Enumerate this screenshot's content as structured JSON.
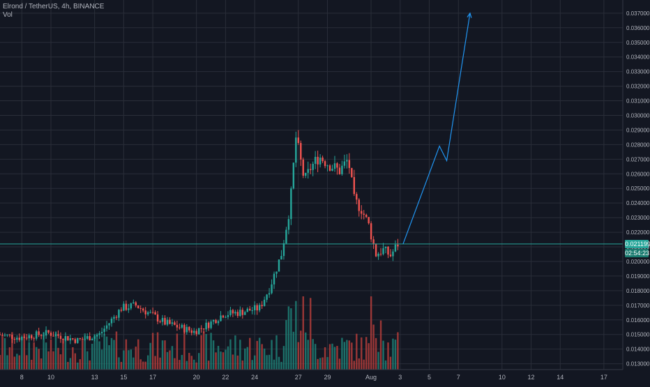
{
  "legend": {
    "title": "Elrond / TetherUS, 4h, BINANCE",
    "indicator": "Vol"
  },
  "colors": {
    "background": "#131722",
    "grid": "#2a2e39",
    "up": "#26a69a",
    "down": "#ef5350",
    "vol_up": "#1e7f76",
    "vol_down": "#b23c3a",
    "projection": "#2196f3",
    "text": "#b2b5be"
  },
  "last_price": {
    "value": 0.021199,
    "label": "0.021199",
    "countdown": "02:54:23"
  },
  "chart_data": {
    "type": "candlestick",
    "title": "Elrond / TetherUS, 4h, BINANCE",
    "x_ticks": [
      {
        "label": "8",
        "day": 8
      },
      {
        "label": "10",
        "day": 10
      },
      {
        "label": "13",
        "day": 13
      },
      {
        "label": "15",
        "day": 15
      },
      {
        "label": "17",
        "day": 17
      },
      {
        "label": "20",
        "day": 20
      },
      {
        "label": "22",
        "day": 22
      },
      {
        "label": "24",
        "day": 24
      },
      {
        "label": "27",
        "day": 27
      },
      {
        "label": "29",
        "day": 29
      },
      {
        "label": "Aug",
        "day": 32
      },
      {
        "label": "3",
        "day": 34
      },
      {
        "label": "5",
        "day": 36
      },
      {
        "label": "7",
        "day": 38
      },
      {
        "label": "10",
        "day": 41
      },
      {
        "label": "12",
        "day": 43
      },
      {
        "label": "14",
        "day": 45
      },
      {
        "label": "17",
        "day": 48
      }
    ],
    "y_ticks": [
      0.013,
      0.014,
      0.015,
      0.016,
      0.017,
      0.018,
      0.019,
      0.02,
      0.021,
      0.022,
      0.023,
      0.024,
      0.025,
      0.026,
      0.027,
      0.028,
      0.029,
      0.03,
      0.031,
      0.032,
      0.033,
      0.034,
      0.035,
      0.036,
      0.037
    ],
    "y_tick_labels": [
      "0.013000",
      "0.014000",
      "0.015000",
      "0.016000",
      "0.017000",
      "0.018000",
      "0.019000",
      "0.020000",
      "0.021000",
      "0.022000",
      "0.023000",
      "0.024000",
      "0.025000",
      "0.026000",
      "0.027000",
      "0.028000",
      "0.029000",
      "0.030000",
      "0.031000",
      "0.032000",
      "0.033000",
      "0.034000",
      "0.035000",
      "0.036000",
      "0.037000"
    ],
    "ylim": [
      0.0126,
      0.0379
    ],
    "xlim": [
      6.5,
      49.3
    ],
    "candle_start_day": 6.5,
    "candle_interval_days": 0.1667,
    "key_points": [
      {
        "day": 6.5,
        "price": 0.015
      },
      {
        "day": 8,
        "price": 0.0148
      },
      {
        "day": 10,
        "price": 0.0151
      },
      {
        "day": 12,
        "price": 0.0146
      },
      {
        "day": 13.5,
        "price": 0.015
      },
      {
        "day": 15,
        "price": 0.0168
      },
      {
        "day": 16,
        "price": 0.017
      },
      {
        "day": 17,
        "price": 0.0164
      },
      {
        "day": 18,
        "price": 0.0158
      },
      {
        "day": 19,
        "price": 0.0155
      },
      {
        "day": 20,
        "price": 0.0152
      },
      {
        "day": 21,
        "price": 0.0157
      },
      {
        "day": 22,
        "price": 0.0164
      },
      {
        "day": 23,
        "price": 0.0165
      },
      {
        "day": 24.5,
        "price": 0.0168
      },
      {
        "day": 25.2,
        "price": 0.0182
      },
      {
        "day": 26,
        "price": 0.0205
      },
      {
        "day": 26.6,
        "price": 0.0238
      },
      {
        "day": 27,
        "price": 0.0285
      },
      {
        "day": 27.6,
        "price": 0.0255
      },
      {
        "day": 28,
        "price": 0.0264
      },
      {
        "day": 28.6,
        "price": 0.0272
      },
      {
        "day": 29.2,
        "price": 0.0267
      },
      {
        "day": 30,
        "price": 0.0262
      },
      {
        "day": 30.6,
        "price": 0.027
      },
      {
        "day": 31,
        "price": 0.0242
      },
      {
        "day": 31.5,
        "price": 0.0236
      },
      {
        "day": 32,
        "price": 0.0225
      },
      {
        "day": 32.5,
        "price": 0.0205
      },
      {
        "day": 33,
        "price": 0.0208
      },
      {
        "day": 33.5,
        "price": 0.0204
      },
      {
        "day": 34,
        "price": 0.0212
      }
    ],
    "projection": [
      {
        "day": 34.2,
        "price": 0.0212
      },
      {
        "day": 36.7,
        "price": 0.0279
      },
      {
        "day": 37.2,
        "price": 0.0269
      },
      {
        "day": 38.8,
        "price": 0.037
      }
    ],
    "horizontal_line": 0.021199,
    "volume_ylim": [
      0,
      10
    ],
    "grid": true
  }
}
